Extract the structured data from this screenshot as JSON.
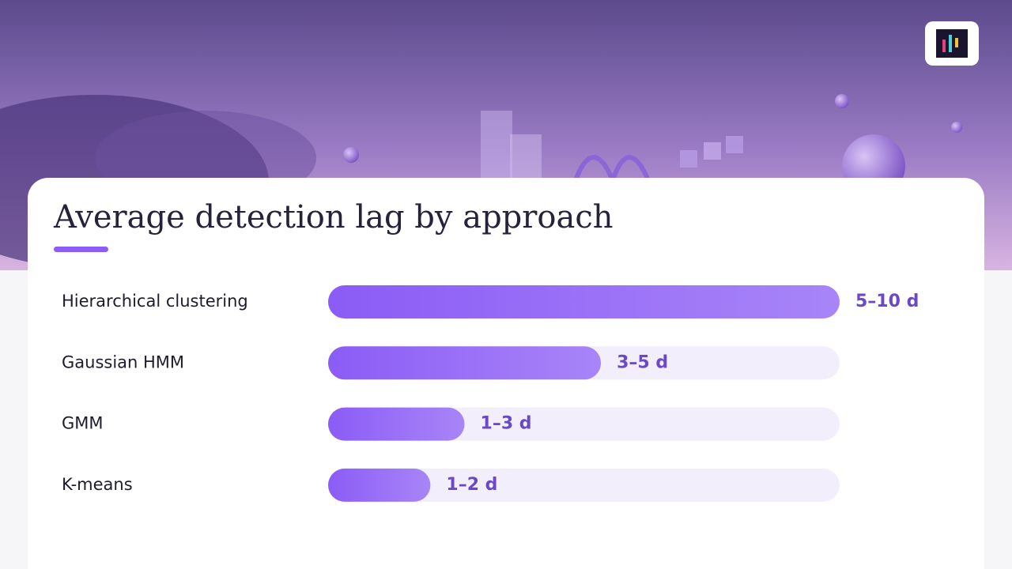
{
  "chart_data": {
    "type": "bar",
    "orientation": "horizontal",
    "title": "Average detection lag by approach",
    "categories": [
      "Hierarchical clustering",
      "Gaussian HMM",
      "GMM",
      "K-means"
    ],
    "values": [
      7.5,
      4,
      2,
      1.5
    ],
    "value_labels": [
      "5–10 d",
      "3–5 d",
      "1–3 d",
      "1–2 d"
    ],
    "color": "#8b5cf6"
  }
}
